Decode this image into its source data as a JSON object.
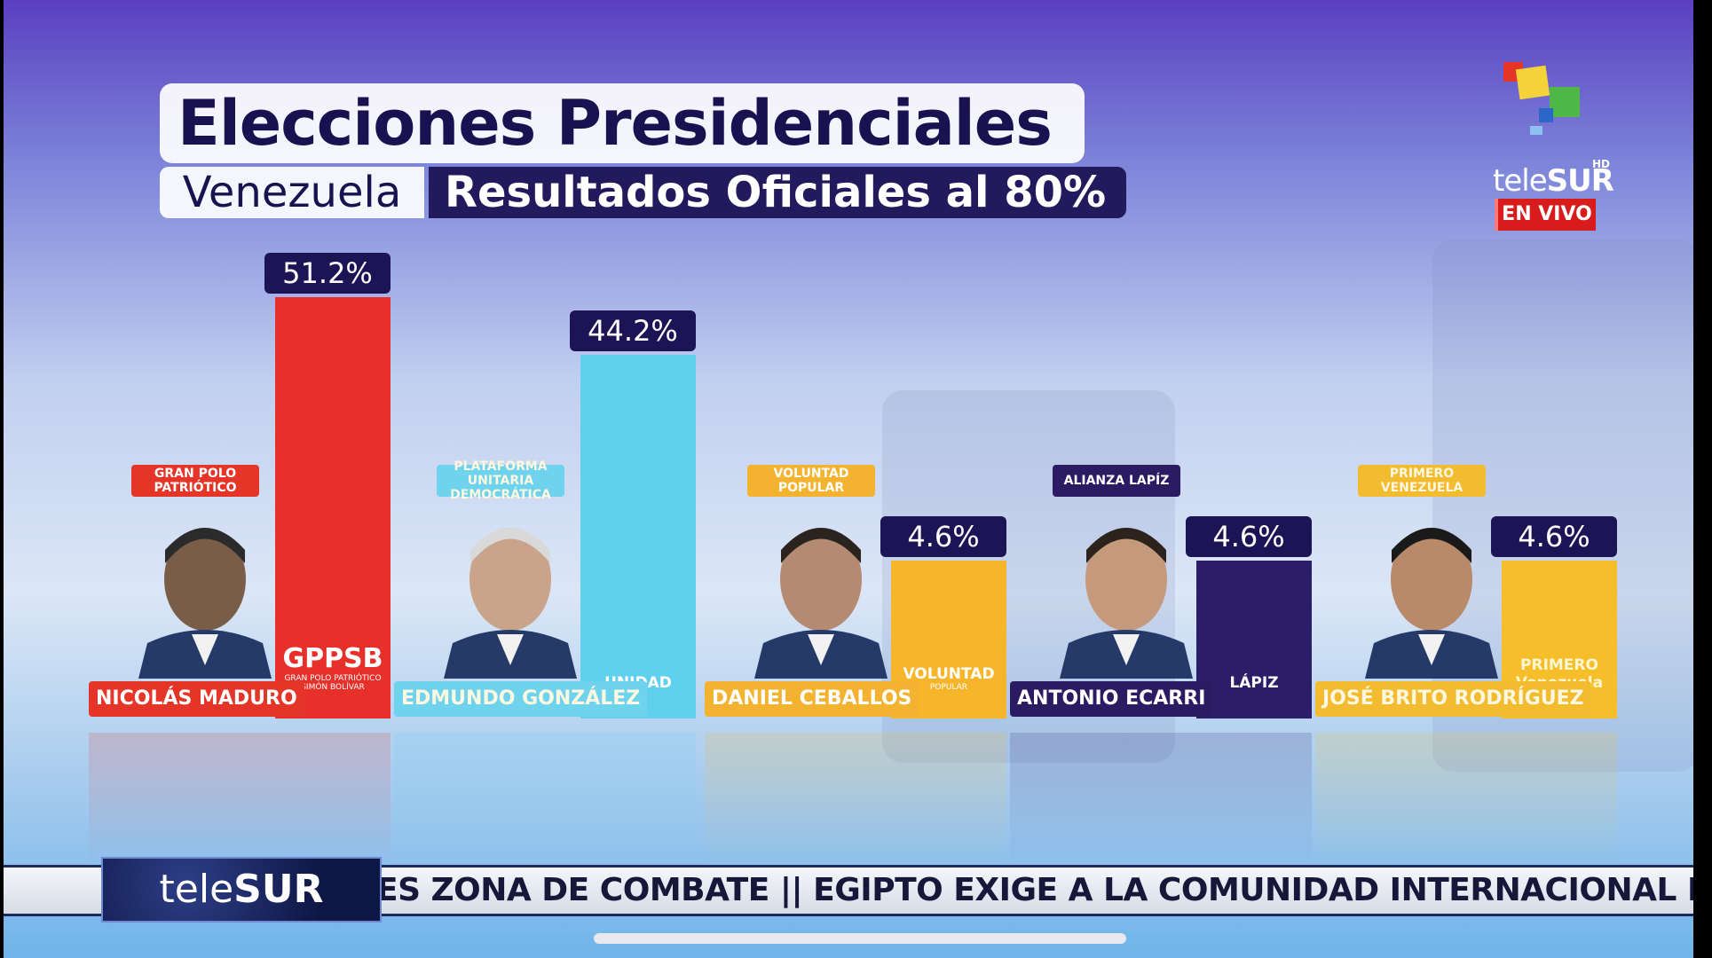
{
  "header": {
    "title": "Elecciones Presidenciales",
    "country": "Venezuela",
    "subtitle": "Resultados Oficiales al 80%"
  },
  "channel": {
    "logo_text_light": "tele",
    "logo_text_bold": "SUR",
    "hd": "HD",
    "live_badge": "EN VIVO"
  },
  "chart_data": {
    "type": "bar",
    "title": "Elecciones Presidenciales",
    "subtitle": "Resultados Oficiales al 80%",
    "unit": "%",
    "ylim": [
      0,
      51.2
    ],
    "categories": [
      "NICOLÁS MADURO",
      "EDMUNDO GONZÁLEZ",
      "DANIEL CEBALLOS",
      "ANTONIO ECARRI",
      "JOSÉ BRITO RODRÍGUEZ"
    ],
    "values": [
      51.2,
      44.2,
      4.6,
      4.6,
      4.6
    ],
    "value_labels": [
      "51.2%",
      "44.2%",
      "4.6%",
      "4.6%",
      "4.6%"
    ],
    "parties": [
      "GRAN POLO PATRIÓTICO",
      "PLATAFORMA UNITARIA DEMOCRÁTICA",
      "VOLUNTAD POPULAR",
      "ALIANZA LAPÍZ",
      "PRIMERO VENEZUELA"
    ],
    "bar_logos": [
      "GPPSB",
      "UNIDAD",
      "VOLUNTAD",
      "LÁPIZ",
      "PRIMERO Venezuela"
    ],
    "bar_logo_subs": [
      "GRAN POLO PATRIÓTICO SIMÓN BOLÍVAR",
      "",
      "POPULAR",
      "",
      ""
    ],
    "colors": [
      "#e8302a",
      "#5fd0ee",
      "#f7b52c",
      "#2c1d68",
      "#f7be2c"
    ],
    "party_colors": [
      "#e53528",
      "#6fd3ee",
      "#f3b331",
      "#2a1b63",
      "#f2bb30"
    ],
    "name_colors": [
      "#e53528",
      "#6fd3ee",
      "#f3b331",
      "#2a1b63",
      "#f2bb30"
    ]
  },
  "ticker": {
    "logo_light": "tele",
    "logo_bold": "SUR",
    "text": "ES ZONA DE COMBATE  ||  EGIPTO EXIGE A LA COMUNIDAD INTERNACIONAL EVITA"
  }
}
